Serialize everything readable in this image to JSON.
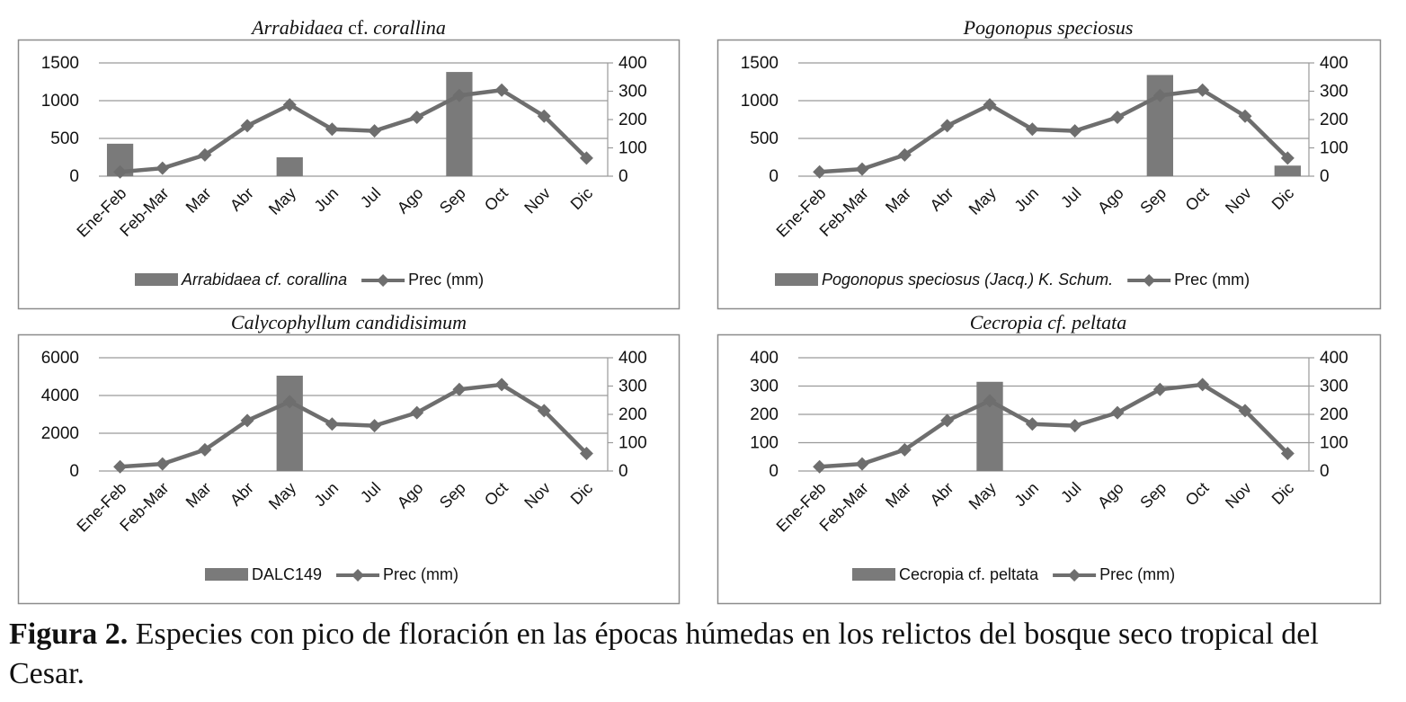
{
  "chart_data": [
    {
      "type": "bar+line",
      "title_italic": "Arrabidaea",
      "title_plain": " cf. ",
      "title_italic2": "corallina",
      "title": "Arrabidaea cf. corallina",
      "categories": [
        "Ene-Feb",
        "Feb-Mar",
        "Mar",
        "Abr",
        "May",
        "Jun",
        "Jul",
        "Ago",
        "Sep",
        "Oct",
        "Nov",
        "Dic"
      ],
      "bar_series": {
        "name": "Arrabidaea cf. corallina",
        "legend_italic": true,
        "values": [
          430,
          0,
          0,
          0,
          250,
          0,
          0,
          0,
          1380,
          0,
          0,
          0
        ]
      },
      "line_series": {
        "name": "Prec (mm)",
        "values": [
          15,
          28,
          75,
          178,
          252,
          166,
          160,
          208,
          285,
          304,
          212,
          64
        ]
      },
      "y_left": {
        "min": 0,
        "max": 1500,
        "ticks": [
          "0",
          "500",
          "1000",
          "1500"
        ]
      },
      "y_right": {
        "min": 0,
        "max": 400,
        "ticks": [
          "0",
          "100",
          "200",
          "300",
          "400"
        ]
      },
      "grid": true,
      "legend": "bottom"
    },
    {
      "type": "bar+line",
      "title_italic": "Pogonopus speciosus",
      "title_plain": "",
      "title_italic2": "",
      "title": "Pogonopus speciosus",
      "categories": [
        "Ene-Feb",
        "Feb-Mar",
        "Mar",
        "Abr",
        "May",
        "Jun",
        "Jul",
        "Ago",
        "Sep",
        "Oct",
        "Nov",
        "Dic"
      ],
      "bar_series": {
        "name": "Pogonopus speciosus (Jacq.) K. Schum.",
        "legend_italic": true,
        "values": [
          0,
          0,
          0,
          0,
          0,
          0,
          0,
          0,
          1340,
          0,
          0,
          140
        ]
      },
      "line_series": {
        "name": "Prec (mm)",
        "values": [
          15,
          25,
          75,
          178,
          252,
          166,
          160,
          208,
          285,
          304,
          212,
          64
        ]
      },
      "y_left": {
        "min": 0,
        "max": 1500,
        "ticks": [
          "0",
          "500",
          "1000",
          "1500"
        ]
      },
      "y_right": {
        "min": 0,
        "max": 400,
        "ticks": [
          "0",
          "100",
          "200",
          "300",
          "400"
        ]
      },
      "grid": true,
      "legend": "bottom"
    },
    {
      "type": "bar+line",
      "title_italic": "Calycophyllum candidisimum",
      "title_plain": "",
      "title_italic2": "",
      "title": "Calycophyllum candidisimum",
      "categories": [
        "Ene-Feb",
        "Feb-Mar",
        "Mar",
        "Abr",
        "May",
        "Jun",
        "Jul",
        "Ago",
        "Sep",
        "Oct",
        "Nov",
        "Dic"
      ],
      "bar_series": {
        "name": "DALC149",
        "legend_italic": false,
        "values": [
          0,
          0,
          0,
          0,
          5050,
          0,
          0,
          0,
          0,
          0,
          0,
          0
        ]
      },
      "line_series": {
        "name": "Prec (mm)",
        "values": [
          15,
          25,
          75,
          178,
          245,
          166,
          160,
          206,
          288,
          305,
          213,
          62
        ]
      },
      "y_left": {
        "min": 0,
        "max": 6000,
        "ticks": [
          "0",
          "2000",
          "4000",
          "6000"
        ]
      },
      "y_right": {
        "min": 0,
        "max": 400,
        "ticks": [
          "0",
          "100",
          "200",
          "300",
          "400"
        ]
      },
      "grid": true,
      "legend": "bottom"
    },
    {
      "type": "bar+line",
      "title_italic": "Cecropia cf. peltata",
      "title_plain": "",
      "title_italic2": "",
      "title": "Cecropia cf. peltata",
      "categories": [
        "Ene-Feb",
        "Feb-Mar",
        "Mar",
        "Abr",
        "May",
        "Jun",
        "Jul",
        "Ago",
        "Sep",
        "Oct",
        "Nov",
        "Dic"
      ],
      "bar_series": {
        "name": "Cecropia cf. peltata",
        "legend_italic": false,
        "values": [
          0,
          0,
          0,
          0,
          315,
          0,
          0,
          0,
          0,
          0,
          0,
          0
        ]
      },
      "line_series": {
        "name": "Prec (mm)",
        "values": [
          15,
          25,
          75,
          178,
          248,
          166,
          160,
          206,
          288,
          305,
          213,
          62
        ]
      },
      "y_left": {
        "min": 0,
        "max": 400,
        "ticks": [
          "0",
          "100",
          "200",
          "300",
          "400"
        ]
      },
      "y_right": {
        "min": 0,
        "max": 400,
        "ticks": [
          "0",
          "100",
          "200",
          "300",
          "400"
        ]
      },
      "grid": true,
      "legend": "bottom"
    }
  ],
  "colors": {
    "bar": "#7a7a7a",
    "line": "#6e6e6e",
    "grid": "#9a9a9a",
    "border": "#8c8c8c",
    "text": "#111111"
  },
  "caption": {
    "label": "Figura 2.",
    "text": " Especies con pico de floración en las épocas húmedas en los relictos del bosque seco tropical del Cesar."
  }
}
